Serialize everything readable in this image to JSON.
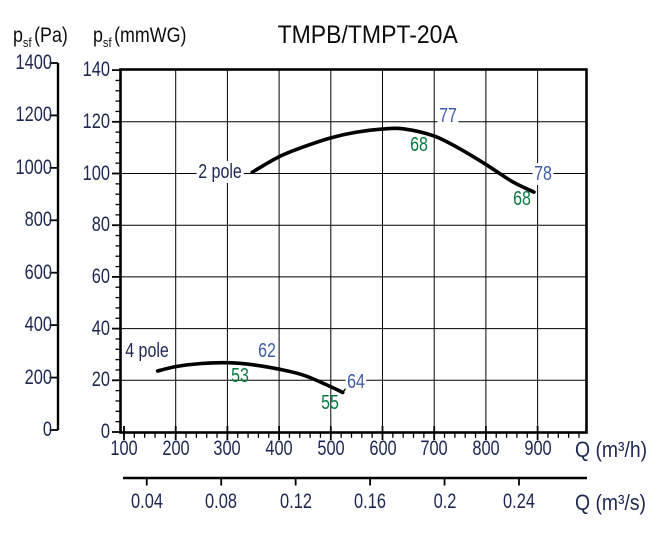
{
  "title": "TMPB/TMPT-20A",
  "colors": {
    "axis_text": "#1d2752",
    "efficiency_blue": "#3d5ba6",
    "efficiency_green": "#077a3f",
    "curve": "#000000"
  },
  "pa_axis_title": {
    "symbol": "p",
    "sub": "sf",
    "unit": "(Pa)"
  },
  "mmwg_axis_title": {
    "symbol": "p",
    "sub": "sf",
    "unit": "(mmWG)"
  },
  "flow_axis_h": {
    "label": "Q (m³/h)"
  },
  "flow_axis_s": {
    "label": "Q (m³/s)"
  },
  "chart_data": {
    "type": "line",
    "title": "TMPB/TMPT-20A",
    "x_axis": {
      "label": "Q (m³/h)",
      "range": [
        100,
        1000
      ],
      "ticks": [
        100,
        200,
        300,
        400,
        500,
        600,
        700,
        800,
        900
      ],
      "minor_tick_step": 20,
      "gridlines": [
        200,
        300,
        400,
        500,
        600,
        700,
        800,
        900
      ]
    },
    "x_axis_secondary": {
      "label": "Q (m³/s)",
      "tick_labels": [
        "0.04",
        "0.08",
        "0.12",
        "0.16",
        "0.2",
        "0.24"
      ]
    },
    "y_axis": {
      "label": "psf (mmWG)",
      "range": [
        0,
        140
      ],
      "ticks": [
        0,
        20,
        40,
        60,
        80,
        100,
        120,
        140
      ],
      "minor_tick_step": 4,
      "gridlines": [
        20,
        40,
        60,
        80,
        100,
        120
      ]
    },
    "y_axis_secondary": {
      "label": "psf (Pa)",
      "range": [
        0,
        1400
      ],
      "ticks": [
        0,
        200,
        400,
        600,
        800,
        1000,
        1200,
        1400
      ]
    },
    "grid": true,
    "series": [
      {
        "name": "2 pole",
        "x": [
          348,
          400,
          450,
          500,
          550,
          600,
          640,
          700,
          750,
          800,
          850,
          893
        ],
        "y": [
          100.5,
          106.5,
          110.5,
          113.8,
          116.0,
          117.2,
          117.3,
          114.5,
          109.5,
          103.5,
          97.0,
          92.8
        ]
      },
      {
        "name": "4 pole",
        "x": [
          165,
          200,
          250,
          300,
          350,
          400,
          450,
          500,
          523
        ],
        "y": [
          23.6,
          25.3,
          26.5,
          26.8,
          26.0,
          24.3,
          21.8,
          17.5,
          15.3
        ]
      }
    ],
    "annotations": [
      {
        "text": "2 pole",
        "x": 286,
        "y": 100.6,
        "color": "black",
        "bg": true,
        "kind": "series"
      },
      {
        "text": "4 pole",
        "x": 144,
        "y": 31.3,
        "color": "black",
        "bg": false,
        "kind": "series"
      },
      {
        "text": "77",
        "x": 727,
        "y": 122.4,
        "color": "blue",
        "bg": true,
        "kind": "efficiency"
      },
      {
        "text": "68",
        "x": 671,
        "y": 111.0,
        "color": "green",
        "bg": false,
        "kind": "efficiency"
      },
      {
        "text": "78",
        "x": 910,
        "y": 99.8,
        "color": "blue",
        "bg": true,
        "kind": "efficiency"
      },
      {
        "text": "68",
        "x": 870,
        "y": 90.0,
        "color": "green",
        "bg": false,
        "kind": "efficiency"
      },
      {
        "text": "62",
        "x": 377,
        "y": 31.3,
        "color": "blue",
        "bg": false,
        "kind": "efficiency"
      },
      {
        "text": "53",
        "x": 324,
        "y": 21.7,
        "color": "green",
        "bg": false,
        "kind": "efficiency"
      },
      {
        "text": "64",
        "x": 549,
        "y": 19.3,
        "color": "blue",
        "bg": true,
        "kind": "efficiency"
      },
      {
        "text": "55",
        "x": 499,
        "y": 11.2,
        "color": "green",
        "bg": false,
        "kind": "efficiency"
      }
    ]
  }
}
